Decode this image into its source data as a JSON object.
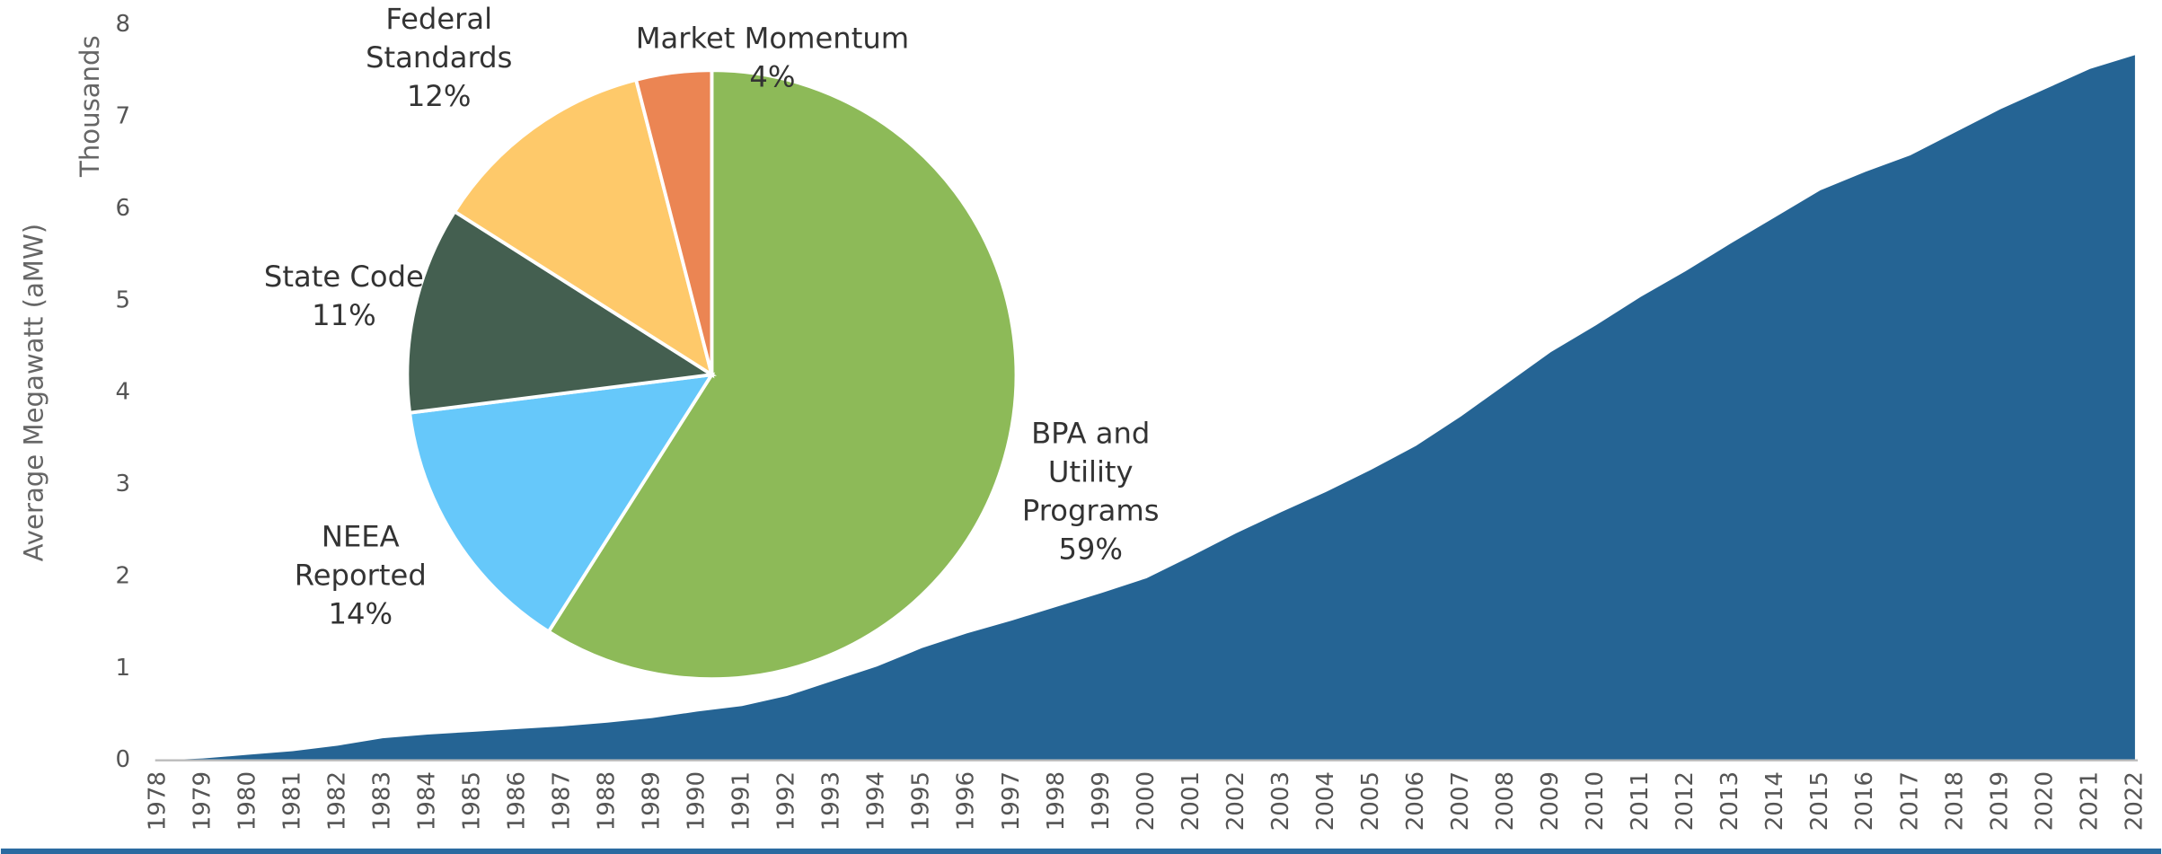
{
  "chart_data": [
    {
      "type": "area",
      "y_label": "Average Megawatt (aMW)",
      "y_unit_label": "Thousands",
      "categories": [
        "1978",
        "1979",
        "1980",
        "1981",
        "1982",
        "1983",
        "1984",
        "1985",
        "1986",
        "1987",
        "1988",
        "1989",
        "1990",
        "1991",
        "1992",
        "1993",
        "1994",
        "1995",
        "1996",
        "1997",
        "1998",
        "1999",
        "2000",
        "2001",
        "2002",
        "2003",
        "2004",
        "2005",
        "2006",
        "2007",
        "2008",
        "2009",
        "2010",
        "2011",
        "2012",
        "2013",
        "2014",
        "2015",
        "2016",
        "2017",
        "2018",
        "2019",
        "2020",
        "2021",
        "2022"
      ],
      "values": [
        0,
        0.02,
        0.06,
        0.1,
        0.16,
        0.24,
        0.28,
        0.31,
        0.34,
        0.37,
        0.41,
        0.46,
        0.53,
        0.59,
        0.7,
        0.86,
        1.02,
        1.22,
        1.38,
        1.52,
        1.67,
        1.82,
        1.98,
        2.22,
        2.47,
        2.7,
        2.92,
        3.16,
        3.42,
        3.74,
        4.09,
        4.44,
        4.73,
        5.04,
        5.32,
        5.62,
        5.91,
        6.2,
        6.4,
        6.58,
        6.83,
        7.08,
        7.3,
        7.52,
        7.67
      ],
      "color": "#256494",
      "ylim": [
        0,
        8
      ],
      "yticks": [
        0,
        1,
        2,
        3,
        4,
        5,
        6,
        7,
        8
      ],
      "grid": false
    },
    {
      "type": "pie",
      "categories": [
        "BPA and Utility Programs",
        "NEEA Reported",
        "State Code",
        "Federal Standards",
        "Market Momentum"
      ],
      "values": [
        59,
        14,
        11,
        12,
        4
      ],
      "value_labels": [
        "59%",
        "14%",
        "11%",
        "12%",
        "4%"
      ],
      "colors": [
        "#8dba58",
        "#66c8fa",
        "#445f50",
        "#fec96a",
        "#eb8553"
      ]
    }
  ]
}
